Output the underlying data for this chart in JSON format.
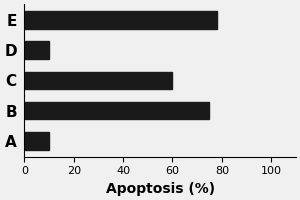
{
  "categories": [
    "A",
    "B",
    "C",
    "D",
    "E"
  ],
  "values": [
    10,
    75,
    60,
    10,
    78
  ],
  "bar_color": "#1a1a1a",
  "bar_height": 0.58,
  "xlabel": "Apoptosis (%)",
  "xlim": [
    0,
    110
  ],
  "xticks": [
    0,
    20,
    40,
    60,
    80,
    100
  ],
  "background_color": "#f0f0f0",
  "xlabel_fontsize": 10,
  "xlabel_fontweight": "bold",
  "tick_label_fontsize": 8,
  "category_fontsize": 11,
  "category_fontweight": "bold"
}
